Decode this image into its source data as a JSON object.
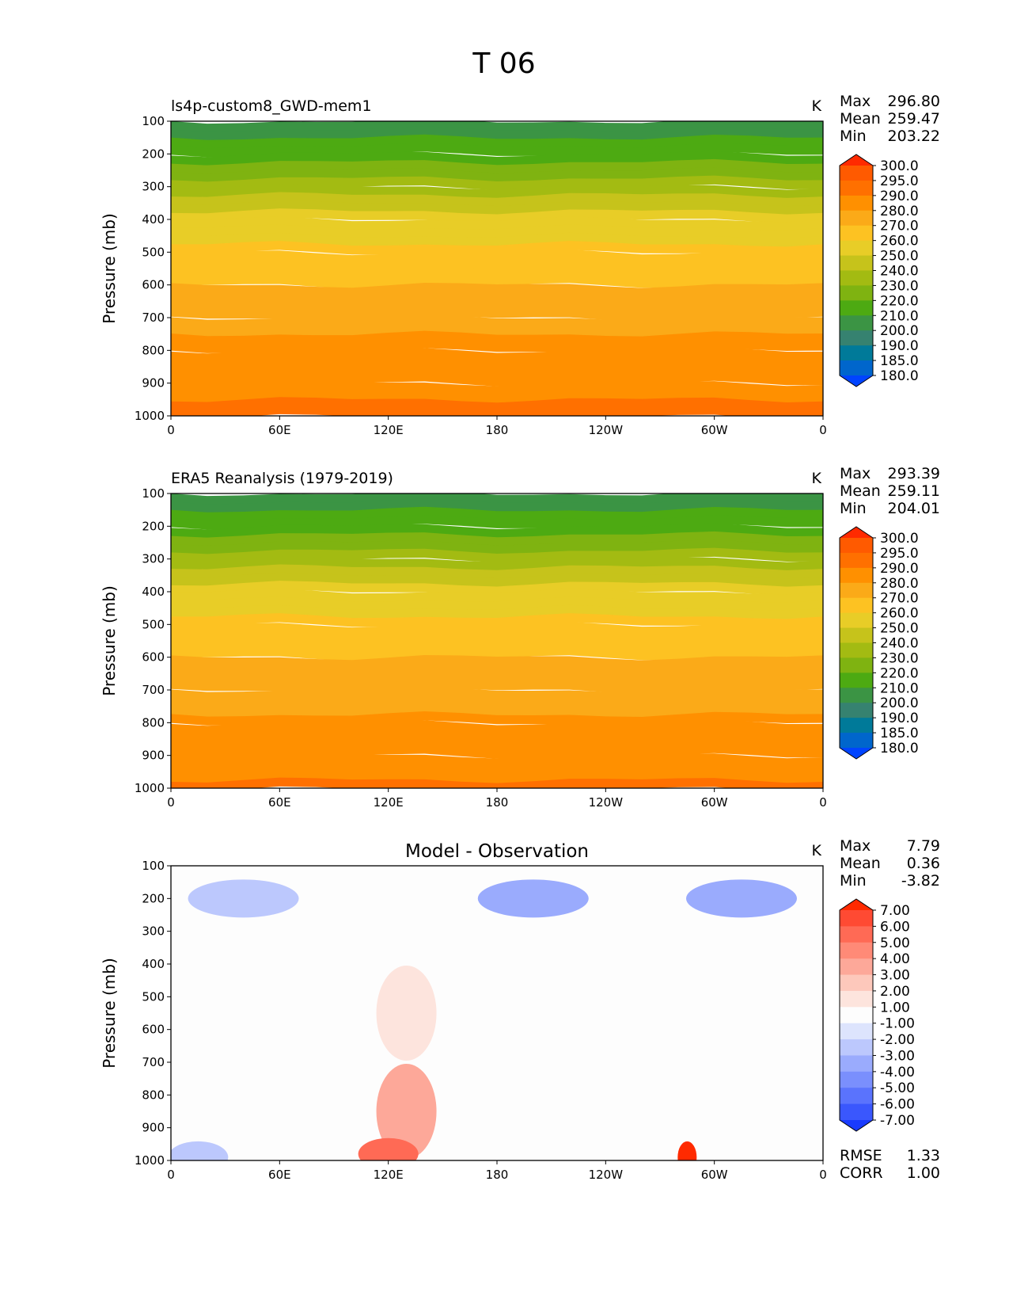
{
  "figure": {
    "title": "T 06"
  },
  "chart_data": [
    {
      "type": "heatmap",
      "subtitle": "ls4p-custom8_GWD-mem1",
      "units": "K",
      "stats": [
        {
          "label": "Max",
          "value": "296.80"
        },
        {
          "label": "Mean",
          "value": "259.47"
        },
        {
          "label": "Min",
          "value": "203.22"
        }
      ],
      "ylabel": "Pressure (mb)",
      "x_ticks": [
        "0",
        "60E",
        "120E",
        "180",
        "120W",
        "60W",
        "0"
      ],
      "y_ticks": [
        "100",
        "200",
        "300",
        "400",
        "500",
        "600",
        "700",
        "800",
        "900",
        "1000"
      ],
      "ylim": [
        100,
        1000
      ],
      "colorbar_ticks": [
        "300.0",
        "295.0",
        "290.0",
        "280.0",
        "270.0",
        "260.0",
        "250.0",
        "240.0",
        "230.0",
        "220.0",
        "210.0",
        "200.0",
        "190.0",
        "185.0",
        "180.0"
      ],
      "colorbar_colors": [
        "#ff2a00",
        "#ff5a00",
        "#ff7000",
        "#ff9000",
        "#fbaa18",
        "#fdc222",
        "#e8cd27",
        "#c6c31b",
        "#a3bb12",
        "#7fb311",
        "#4daa12",
        "#3b9444",
        "#368270",
        "#007a99",
        "#0066cc",
        "#0044ff"
      ],
      "zonal_profile": [
        {
          "p": 100,
          "t": 204
        },
        {
          "p": 200,
          "t": 216
        },
        {
          "p": 300,
          "t": 237
        },
        {
          "p": 400,
          "t": 254
        },
        {
          "p": 500,
          "t": 263
        },
        {
          "p": 600,
          "t": 270
        },
        {
          "p": 700,
          "t": 277
        },
        {
          "p": 800,
          "t": 283
        },
        {
          "p": 900,
          "t": 288
        },
        {
          "p": 1000,
          "t": 293
        }
      ]
    },
    {
      "type": "heatmap",
      "subtitle": "ERA5 Reanalysis (1979-2019)",
      "units": "K",
      "stats": [
        {
          "label": "Max",
          "value": "293.39"
        },
        {
          "label": "Mean",
          "value": "259.11"
        },
        {
          "label": "Min",
          "value": "204.01"
        }
      ],
      "ylabel": "Pressure (mb)",
      "x_ticks": [
        "0",
        "60E",
        "120E",
        "180",
        "120W",
        "60W",
        "0"
      ],
      "y_ticks": [
        "100",
        "200",
        "300",
        "400",
        "500",
        "600",
        "700",
        "800",
        "900",
        "1000"
      ],
      "ylim": [
        100,
        1000
      ],
      "colorbar_ticks": [
        "300.0",
        "295.0",
        "290.0",
        "280.0",
        "270.0",
        "260.0",
        "250.0",
        "240.0",
        "230.0",
        "220.0",
        "210.0",
        "200.0",
        "190.0",
        "185.0",
        "180.0"
      ],
      "colorbar_colors": [
        "#ff2a00",
        "#ff5a00",
        "#ff7000",
        "#ff9000",
        "#fbaa18",
        "#fdc222",
        "#e8cd27",
        "#c6c31b",
        "#a3bb12",
        "#7fb311",
        "#4daa12",
        "#3b9444",
        "#368270",
        "#007a99",
        "#0066cc",
        "#0044ff"
      ],
      "zonal_profile": [
        {
          "p": 100,
          "t": 205
        },
        {
          "p": 200,
          "t": 215
        },
        {
          "p": 300,
          "t": 236
        },
        {
          "p": 400,
          "t": 253
        },
        {
          "p": 500,
          "t": 263
        },
        {
          "p": 600,
          "t": 270
        },
        {
          "p": 700,
          "t": 276
        },
        {
          "p": 800,
          "t": 282
        },
        {
          "p": 900,
          "t": 287
        },
        {
          "p": 1000,
          "t": 291
        }
      ]
    },
    {
      "type": "heatmap",
      "subtitle": "Model - Observation",
      "units": "K",
      "stats": [
        {
          "label": "Max",
          "value": "7.79"
        },
        {
          "label": "Mean",
          "value": "0.36"
        },
        {
          "label": "Min",
          "value": "-3.82"
        }
      ],
      "extra_stats": [
        {
          "label": "RMSE",
          "value": "1.33"
        },
        {
          "label": "CORR",
          "value": "1.00"
        }
      ],
      "ylabel": "Pressure (mb)",
      "x_ticks": [
        "0",
        "60E",
        "120E",
        "180",
        "120W",
        "60W",
        "0"
      ],
      "y_ticks": [
        "100",
        "200",
        "300",
        "400",
        "500",
        "600",
        "700",
        "800",
        "900",
        "1000"
      ],
      "ylim": [
        100,
        1000
      ],
      "colorbar_ticks": [
        "7.00",
        "6.00",
        "5.00",
        "4.00",
        "3.00",
        "2.00",
        "1.00",
        "-1.00",
        "-2.00",
        "-3.00",
        "-4.00",
        "-5.00",
        "-6.00",
        "-7.00"
      ],
      "colorbar_colors": [
        "#ff2a00",
        "#ff4a33",
        "#ff6a55",
        "#ff8a77",
        "#fda899",
        "#fdc8bb",
        "#fde4dd",
        "#fdfdfd",
        "#dde4fd",
        "#bcc8fd",
        "#9aabfd",
        "#7a8ffd",
        "#5a73fd",
        "#3a57fd",
        "#1a3bfd"
      ],
      "anomalies": [
        {
          "lon": 40,
          "p": 200,
          "value": -2.5
        },
        {
          "lon": 200,
          "p": 200,
          "value": -3.0
        },
        {
          "lon": 315,
          "p": 200,
          "value": -3.2
        },
        {
          "lon": 130,
          "p": 550,
          "value": 1.5
        },
        {
          "lon": 130,
          "p": 850,
          "value": 3.5
        },
        {
          "lon": 120,
          "p": 980,
          "value": 5.0
        },
        {
          "lon": 285,
          "p": 990,
          "value": 7.8
        },
        {
          "lon": 15,
          "p": 990,
          "value": -2.0
        }
      ]
    }
  ]
}
